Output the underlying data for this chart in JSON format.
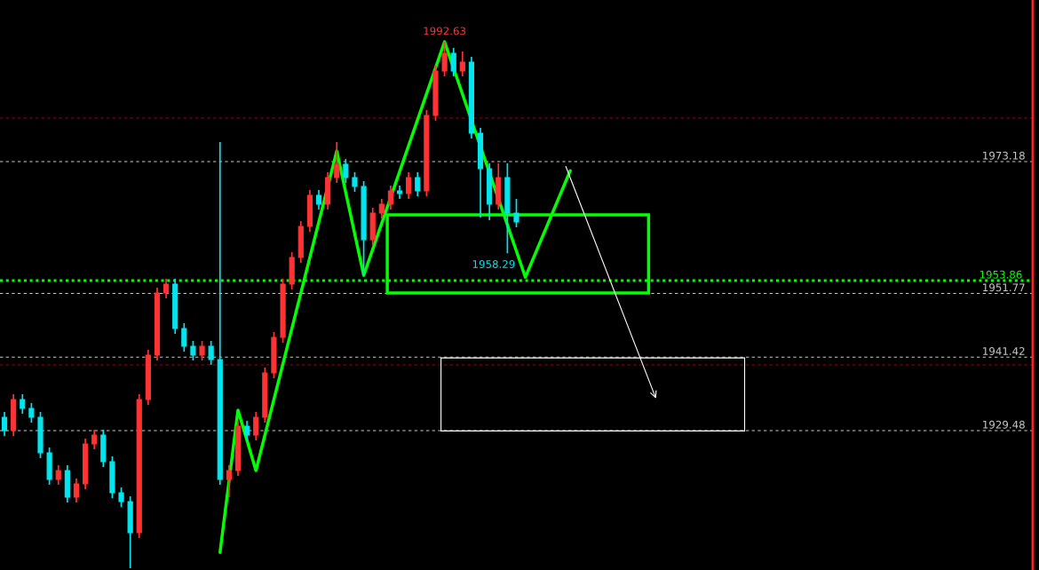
{
  "chart_data": {
    "type": "candlestick",
    "categories": [
      null,
      null,
      null,
      null,
      null,
      null,
      null,
      null,
      null,
      null,
      null,
      null,
      null,
      null,
      null,
      null,
      null,
      null,
      null,
      null,
      null,
      null,
      null,
      null,
      null,
      null,
      null,
      null,
      null,
      null,
      null,
      null,
      null,
      null,
      null,
      null,
      null,
      null,
      null,
      null,
      null,
      null,
      null,
      null,
      null,
      null,
      null,
      null,
      null,
      null,
      null,
      null,
      null,
      null,
      null,
      null,
      null,
      null,
      null,
      null,
      null,
      null,
      null,
      null,
      null,
      null,
      null,
      null,
      null,
      null,
      null,
      null,
      null,
      null,
      null,
      null,
      null,
      null,
      null,
      null,
      null,
      null,
      null,
      null,
      null,
      null,
      null,
      null,
      null,
      null,
      null,
      null,
      null,
      null,
      null,
      null,
      null,
      null,
      null,
      null,
      null,
      null,
      null,
      null,
      null,
      null,
      null,
      null,
      null,
      null,
      null,
      null,
      null,
      null,
      null
    ],
    "ohlc": [
      [
        1931.65,
        1932.51,
        1928.62,
        1929.48
      ],
      [
        1929.48,
        1935.4,
        1928.62,
        1934.53
      ],
      [
        1934.53,
        1935.4,
        1932.22,
        1933.09
      ],
      [
        1933.09,
        1933.95,
        1930.78,
        1931.65
      ],
      [
        1931.65,
        1932.51,
        1925.01,
        1925.88
      ],
      [
        1925.88,
        1926.74,
        1920.69,
        1921.55
      ],
      [
        1921.55,
        1923.86,
        1920.69,
        1922.99
      ],
      [
        1922.99,
        1923.86,
        1917.8,
        1918.67
      ],
      [
        1918.67,
        1921.7,
        1917.8,
        1920.83
      ],
      [
        1920.83,
        1928.19,
        1919.97,
        1927.32
      ],
      [
        1927.32,
        1929.63,
        1926.45,
        1928.76
      ],
      [
        1928.76,
        1929.63,
        1923.57,
        1924.44
      ],
      [
        1924.44,
        1925.3,
        1918.52,
        1919.39
      ],
      [
        1919.39,
        1920.25,
        1917.08,
        1917.95
      ],
      [
        1917.95,
        1918.81,
        1907.13,
        1912.9
      ],
      [
        1912.9,
        1935.4,
        1912.03,
        1934.53
      ],
      [
        1934.53,
        1942.61,
        1933.67,
        1941.74
      ],
      [
        1941.74,
        1952.7,
        1940.88,
        1951.84
      ],
      [
        1951.84,
        1954.15,
        1950.97,
        1953.28
      ],
      [
        1953.28,
        1954.15,
        1945.2,
        1946.07
      ],
      [
        1946.07,
        1946.93,
        1942.32,
        1943.18
      ],
      [
        1943.18,
        1944.05,
        1940.88,
        1941.74
      ],
      [
        1941.74,
        1944.05,
        1940.88,
        1943.18
      ],
      [
        1943.18,
        1944.05,
        1940.16,
        1941.02
      ],
      [
        1941.02,
        1976.35,
        1920.69,
        1921.55
      ],
      [
        1921.55,
        1923.86,
        1918.67,
        1922.99
      ],
      [
        1922.99,
        1931.07,
        1922.13,
        1930.2
      ],
      [
        1930.2,
        1931.07,
        1927.9,
        1928.76
      ],
      [
        1928.76,
        1932.51,
        1927.9,
        1931.65
      ],
      [
        1931.65,
        1939.72,
        1930.78,
        1938.86
      ],
      [
        1938.86,
        1945.49,
        1937.99,
        1944.63
      ],
      [
        1944.63,
        1954.15,
        1943.76,
        1953.28
      ],
      [
        1953.28,
        1958.47,
        1952.41,
        1957.61
      ],
      [
        1957.61,
        1963.52,
        1956.74,
        1962.65
      ],
      [
        1962.65,
        1968.57,
        1961.79,
        1967.7
      ],
      [
        1967.7,
        1968.57,
        1965.39,
        1966.26
      ],
      [
        1966.26,
        1971.45,
        1965.39,
        1970.59
      ],
      [
        1970.59,
        1976.35,
        1969.72,
        1972.75
      ],
      [
        1972.75,
        1973.61,
        1969.72,
        1970.59
      ],
      [
        1970.59,
        1971.45,
        1968.28,
        1969.14
      ],
      [
        1969.14,
        1970.01,
        1954.72,
        1960.49
      ],
      [
        1960.49,
        1965.68,
        1959.63,
        1964.82
      ],
      [
        1964.82,
        1967.12,
        1963.95,
        1966.26
      ],
      [
        1966.26,
        1969.29,
        1965.39,
        1968.42
      ],
      [
        1968.42,
        1969.29,
        1967.12,
        1967.99
      ],
      [
        1967.99,
        1971.45,
        1967.12,
        1970.59
      ],
      [
        1970.59,
        1971.45,
        1967.56,
        1968.42
      ],
      [
        1968.42,
        1981.55,
        1967.56,
        1980.68
      ],
      [
        1980.68,
        1988.76,
        1979.82,
        1987.89
      ],
      [
        1987.89,
        1992.63,
        1987.03,
        1990.78
      ],
      [
        1990.78,
        1991.64,
        1987.03,
        1987.89
      ],
      [
        1987.89,
        1991.07,
        1987.03,
        1989.33
      ],
      [
        1989.33,
        1990.2,
        1976.93,
        1977.8
      ],
      [
        1977.8,
        1978.66,
        1964.1,
        1972.03
      ],
      [
        1972.03,
        1972.89,
        1963.66,
        1966.26
      ],
      [
        1966.26,
        1972.89,
        1965.39,
        1970.59
      ],
      [
        1970.59,
        1972.89,
        1958.29,
        1964.82
      ],
      [
        1964.82,
        1967.12,
        1962.51,
        1963.37
      ],
      null,
      null,
      null,
      null,
      null,
      null,
      null,
      null,
      null,
      null,
      null,
      null,
      null,
      null,
      null,
      null,
      null,
      null,
      null,
      null,
      null,
      null,
      null,
      null,
      null,
      null,
      null,
      null,
      null,
      null,
      null,
      null,
      null,
      null,
      null,
      null,
      null,
      null,
      null,
      null,
      null,
      null,
      null,
      null,
      null,
      null,
      null,
      null,
      null,
      null,
      null,
      null,
      null,
      null,
      null,
      null,
      null
    ],
    "colors": [
      "#00e5ee",
      "#ff3333",
      "#00e5ee",
      "#00e5ee",
      "#00e5ee",
      "#00e5ee",
      "#ff3333",
      "#00e5ee",
      "#ff3333",
      "#ff3333",
      "#ff3333",
      "#00e5ee",
      "#00e5ee",
      "#00e5ee",
      "#00e5ee",
      "#ff3333",
      "#ff3333",
      "#ff3333",
      "#ff3333",
      "#00e5ee",
      "#00e5ee",
      "#00e5ee",
      "#ff3333",
      "#00e5ee",
      "#00e5ee",
      "#ff3333",
      "#ff3333",
      "#00e5ee",
      "#ff3333",
      "#ff3333",
      "#ff3333",
      "#ff3333",
      "#ff3333",
      "#ff3333",
      "#ff3333",
      "#00e5ee",
      "#ff3333",
      "#ff3333",
      "#00e5ee",
      "#00e5ee",
      "#00e5ee",
      "#ff3333",
      "#ff3333",
      "#ff3333",
      "#00e5ee",
      "#ff3333",
      "#00e5ee",
      "#ff3333",
      "#ff3333",
      "#ff3333",
      "#00e5ee",
      "#ff3333",
      "#00e5ee",
      "#00e5ee",
      "#00e5ee",
      "#ff3333",
      "#00e5ee",
      "#00e5ee",
      null,
      null,
      null,
      null,
      null,
      null,
      null,
      null,
      null,
      null,
      null,
      null,
      null,
      null,
      null,
      null,
      null,
      null,
      null,
      null,
      null,
      null,
      null,
      null,
      null,
      null,
      null,
      null,
      null,
      null,
      null,
      null,
      null,
      null,
      null,
      null,
      null,
      null,
      null,
      null,
      null,
      null,
      null,
      null,
      null,
      null,
      null,
      null,
      null,
      null,
      null,
      null,
      null,
      null,
      null,
      null,
      null
    ],
    "series": [
      {
        "type": "line",
        "color": "#00ff00",
        "values": [
          null,
          null,
          null,
          null,
          null,
          null,
          null,
          null,
          null,
          null,
          null,
          null,
          null,
          null,
          null,
          null,
          null,
          null,
          null,
          null,
          null,
          null,
          null,
          null,
          1909.7,
          null,
          1932.8,
          null,
          1923.0,
          null,
          null,
          null,
          null,
          null,
          null,
          null,
          null,
          1974.9,
          null,
          null,
          1954.7,
          null,
          null,
          null,
          null,
          null,
          null,
          null,
          null,
          1992.63,
          null,
          null,
          null,
          null,
          null,
          null,
          null,
          null,
          1954.4,
          null,
          null,
          null,
          null,
          1971.7,
          null,
          null,
          null,
          null,
          null,
          null,
          null,
          null,
          null,
          null,
          null,
          null,
          null,
          null,
          null,
          null,
          null,
          null,
          null,
          null,
          null,
          null,
          null,
          null,
          null,
          null,
          null,
          null,
          null,
          null,
          null,
          null,
          null,
          null,
          null,
          null,
          null,
          null,
          null,
          null,
          null,
          null,
          null,
          null,
          null,
          null,
          null,
          null,
          null,
          null,
          null
        ]
      }
    ],
    "ref_lines": [
      {
        "axis": "y",
        "value": 1953.86,
        "label": "1953.86",
        "color": "#00ff00",
        "line_style": "dotted"
      },
      {
        "axis": "y",
        "value": 1980.25,
        "label": null,
        "color": "#a00000",
        "line_style": "dashed"
      },
      {
        "axis": "y",
        "value": 1940.16,
        "label": null,
        "color": "#a00000",
        "line_style": "dashed"
      }
    ],
    "annotations": [
      {
        "text": "1992.63",
        "y": 1992.63
      },
      "1958.29"
    ],
    "ylim": [
      1906.84,
      1999.43
    ],
    "yticks": [
      1973.18,
      1951.77,
      1941.42,
      1929.48
    ],
    "tick_labels": "y",
    "grid": "y"
  }
}
